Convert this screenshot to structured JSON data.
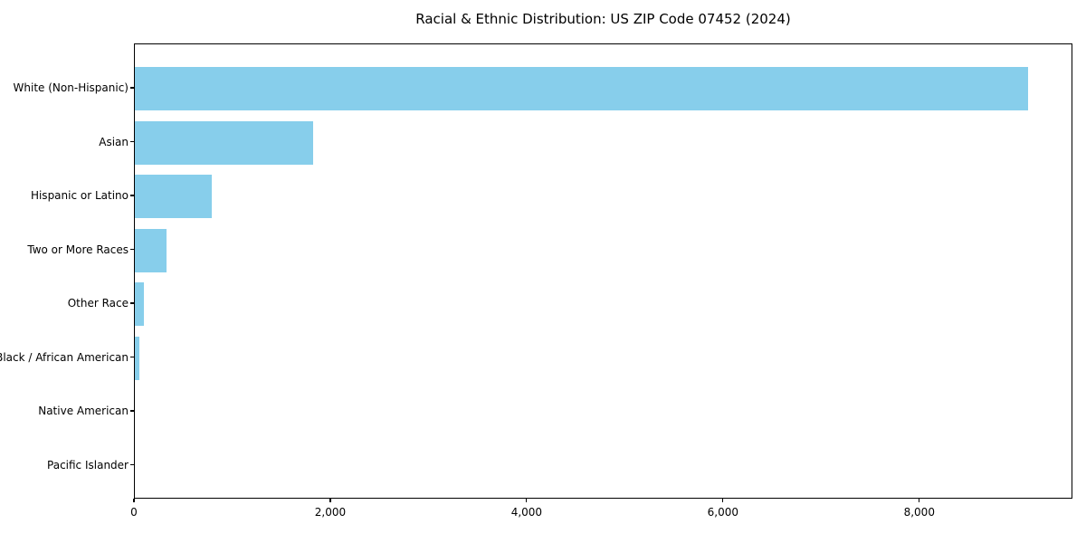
{
  "chart_data": {
    "type": "bar",
    "orientation": "horizontal",
    "title": "Racial & Ethnic Distribution: US ZIP Code 07452 (2024)",
    "categories": [
      "White (Non-Hispanic)",
      "Asian",
      "Hispanic or Latino",
      "Two or More Races",
      "Other Race",
      "Black / African American",
      "Native American",
      "Pacific Islander"
    ],
    "values": [
      9100,
      1820,
      785,
      320,
      90,
      45,
      0,
      0
    ],
    "xlabel": "",
    "ylabel": "",
    "xlim": [
      0,
      9560
    ],
    "xticks": [
      0,
      2000,
      4000,
      6000,
      8000
    ],
    "xtick_labels": [
      "0",
      "2,000",
      "4,000",
      "6,000",
      "8,000"
    ],
    "bar_color": "#87CEEB",
    "axis_color": "#000000",
    "grid": false,
    "legend": null
  }
}
